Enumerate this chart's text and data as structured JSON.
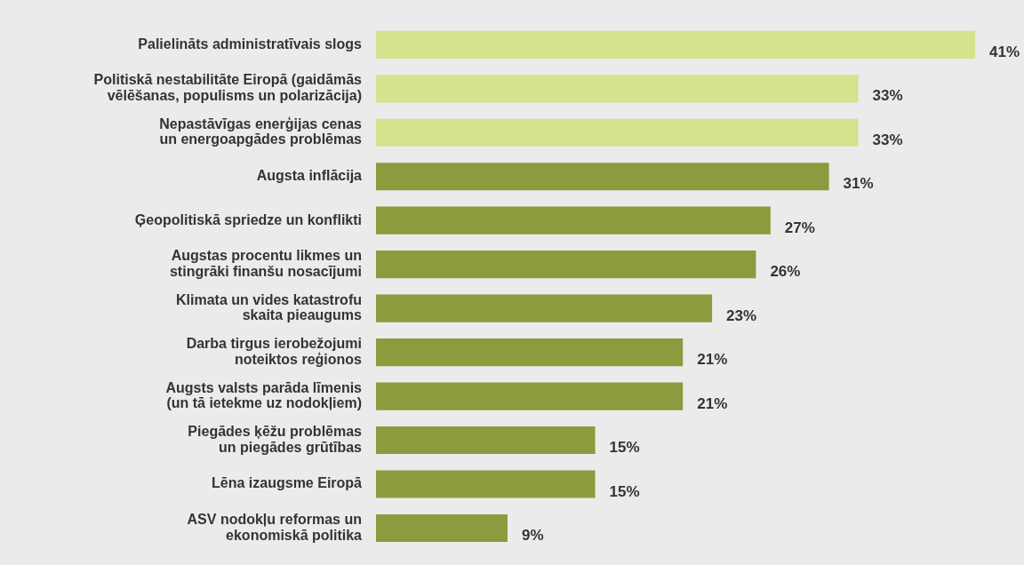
{
  "chart_data": {
    "type": "bar",
    "orientation": "horizontal",
    "categories": [
      "Palielināts administratīvais slogs",
      "Politiskā nestabilitāte Eiropā (gaidāmās\nvēlēšanas, populisms un polarizācija)",
      "Nepastāvīgas enerģijas cenas\nun energoapgādes problēmas",
      "Augsta inflācija",
      "Ģeopolitiskā spriedze un konflikti",
      "Augstas procentu likmes un\nstingrāki finanšu nosacījumi",
      "Klimata un vides katastrofu\nskaita pieaugums",
      "Darba tirgus ierobežojumi\nnoteiktos reģionos",
      "Augsts valsts parāda līmenis\n(un tā ietekme uz nodokļiem)",
      "Piegādes ķēžu problēmas\nun piegādes grūtības",
      "Lēna izaugsme Eiropā",
      "ASV nodokļu reformas un\nekonomiskā politika"
    ],
    "values": [
      41,
      33,
      33,
      31,
      27,
      26,
      23,
      21,
      21,
      15,
      15,
      9
    ],
    "colors": [
      "#d5e28e",
      "#d5e28e",
      "#d5e28e",
      "#8e9a3e",
      "#8e9a3e",
      "#8e9a3e",
      "#8e9a3e",
      "#8e9a3e",
      "#8e9a3e",
      "#8e9a3e",
      "#8e9a3e",
      "#8e9a3e"
    ],
    "value_labels": [
      "41%",
      "33%",
      "33%",
      "31%",
      "27%",
      "26%",
      "23%",
      "21%",
      "21%",
      "15%",
      "15%",
      "9%"
    ],
    "xlim": [
      0,
      41
    ],
    "legend": false
  }
}
